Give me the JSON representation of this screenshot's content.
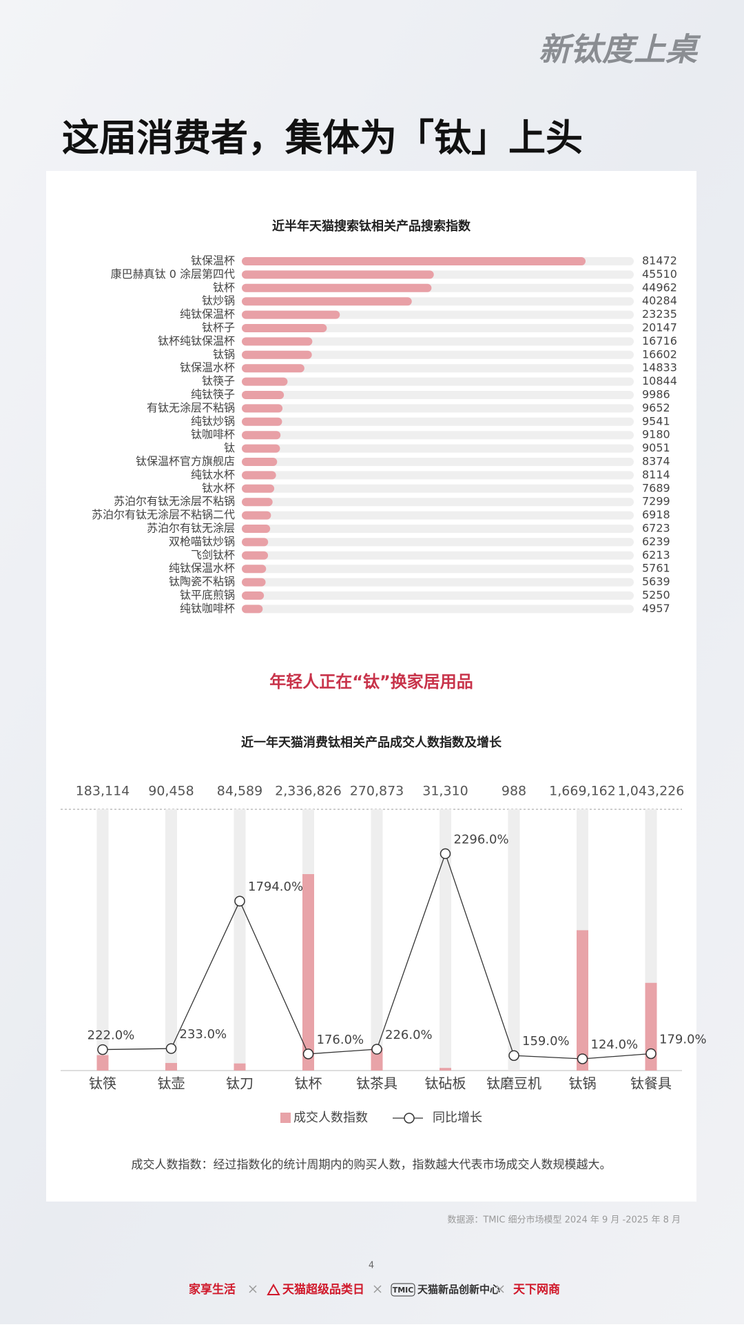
{
  "header": {
    "logo": "新钛度上桌",
    "title": "这届消费者，集体为「钛」上头"
  },
  "chart_data": [
    {
      "type": "hbar",
      "title": "近半年天猫搜索钛相关产品搜索指数",
      "color": "#e8a0a6",
      "track_color": "#efefef",
      "categories": [
        "钛保温杯",
        "康巴赫真钛 0 涂层第四代",
        "钛杯",
        "钛炒锅",
        "纯钛保温杯",
        "钛杯子",
        "钛杯纯钛保温杯",
        "钛锅",
        "钛保温水杯",
        "钛筷子",
        "纯钛筷子",
        "有钛无涂层不粘锅",
        "纯钛炒锅",
        "钛咖啡杯",
        "钛",
        "钛保温杯官方旗舰店",
        "纯钛水杯",
        "钛水杯",
        "苏泊尔有钛无涂层不粘锅",
        "苏泊尔有钛无涂层不粘锅二代",
        "苏泊尔有钛无涂层",
        "双枪喵钛炒锅",
        "飞剑钛杯",
        "纯钛保温水杯",
        "钛陶瓷不粘锅",
        "钛平底煎锅",
        "纯钛咖啡杯"
      ],
      "values": [
        81472,
        45510,
        44962,
        40284,
        23235,
        20147,
        16716,
        16602,
        14833,
        10844,
        9986,
        9652,
        9541,
        9180,
        9051,
        8374,
        8114,
        7689,
        7299,
        6918,
        6723,
        6239,
        6213,
        5761,
        5639,
        5250,
        4957
      ]
    },
    {
      "type": "combo",
      "heading": "年轻人正在“钛”换家居用品",
      "title": "近一年天猫消费钛相关产品成交人数指数及增长",
      "categories": [
        "钛筷",
        "钛壶",
        "钛刀",
        "钛杯",
        "钛茶具",
        "钛砧板",
        "钛磨豆机",
        "钛锅",
        "钛餐具"
      ],
      "series": [
        {
          "name": "成交人数指数",
          "color": "#e8a3a8",
          "values": [
            183114,
            90458,
            84589,
            2336826,
            270873,
            31310,
            988,
            1669162,
            1043226
          ],
          "value_labels": [
            "183,114",
            "90,458",
            "84,589",
            "2,336,826",
            "270,873",
            "31,310",
            "988",
            "1,669,162",
            "1,043,226"
          ]
        },
        {
          "name": "同比增长",
          "color": "#333333",
          "axis": "y2",
          "values": [
            222,
            233,
            1794,
            176,
            226,
            2296,
            159,
            124,
            179
          ],
          "value_labels": [
            "222.0%",
            "233.0%",
            "1794.0%",
            "176.0%",
            "226.0%",
            "2296.0%",
            "159.0%",
            "124.0%",
            "179.0%"
          ]
        }
      ],
      "note": "成交人数指数：经过指数化的统计周期内的购买人数，指数越大代表市场成交人数规模越大。"
    }
  ],
  "source": "数据源：TMIC 细分市场模型 2024 年 9 月 -2025 年 8 月",
  "page_number": "4",
  "footer": [
    "家享生活",
    "天猫超级品类日",
    "TMIC",
    "天猫新品创新中心",
    "天下网商"
  ]
}
